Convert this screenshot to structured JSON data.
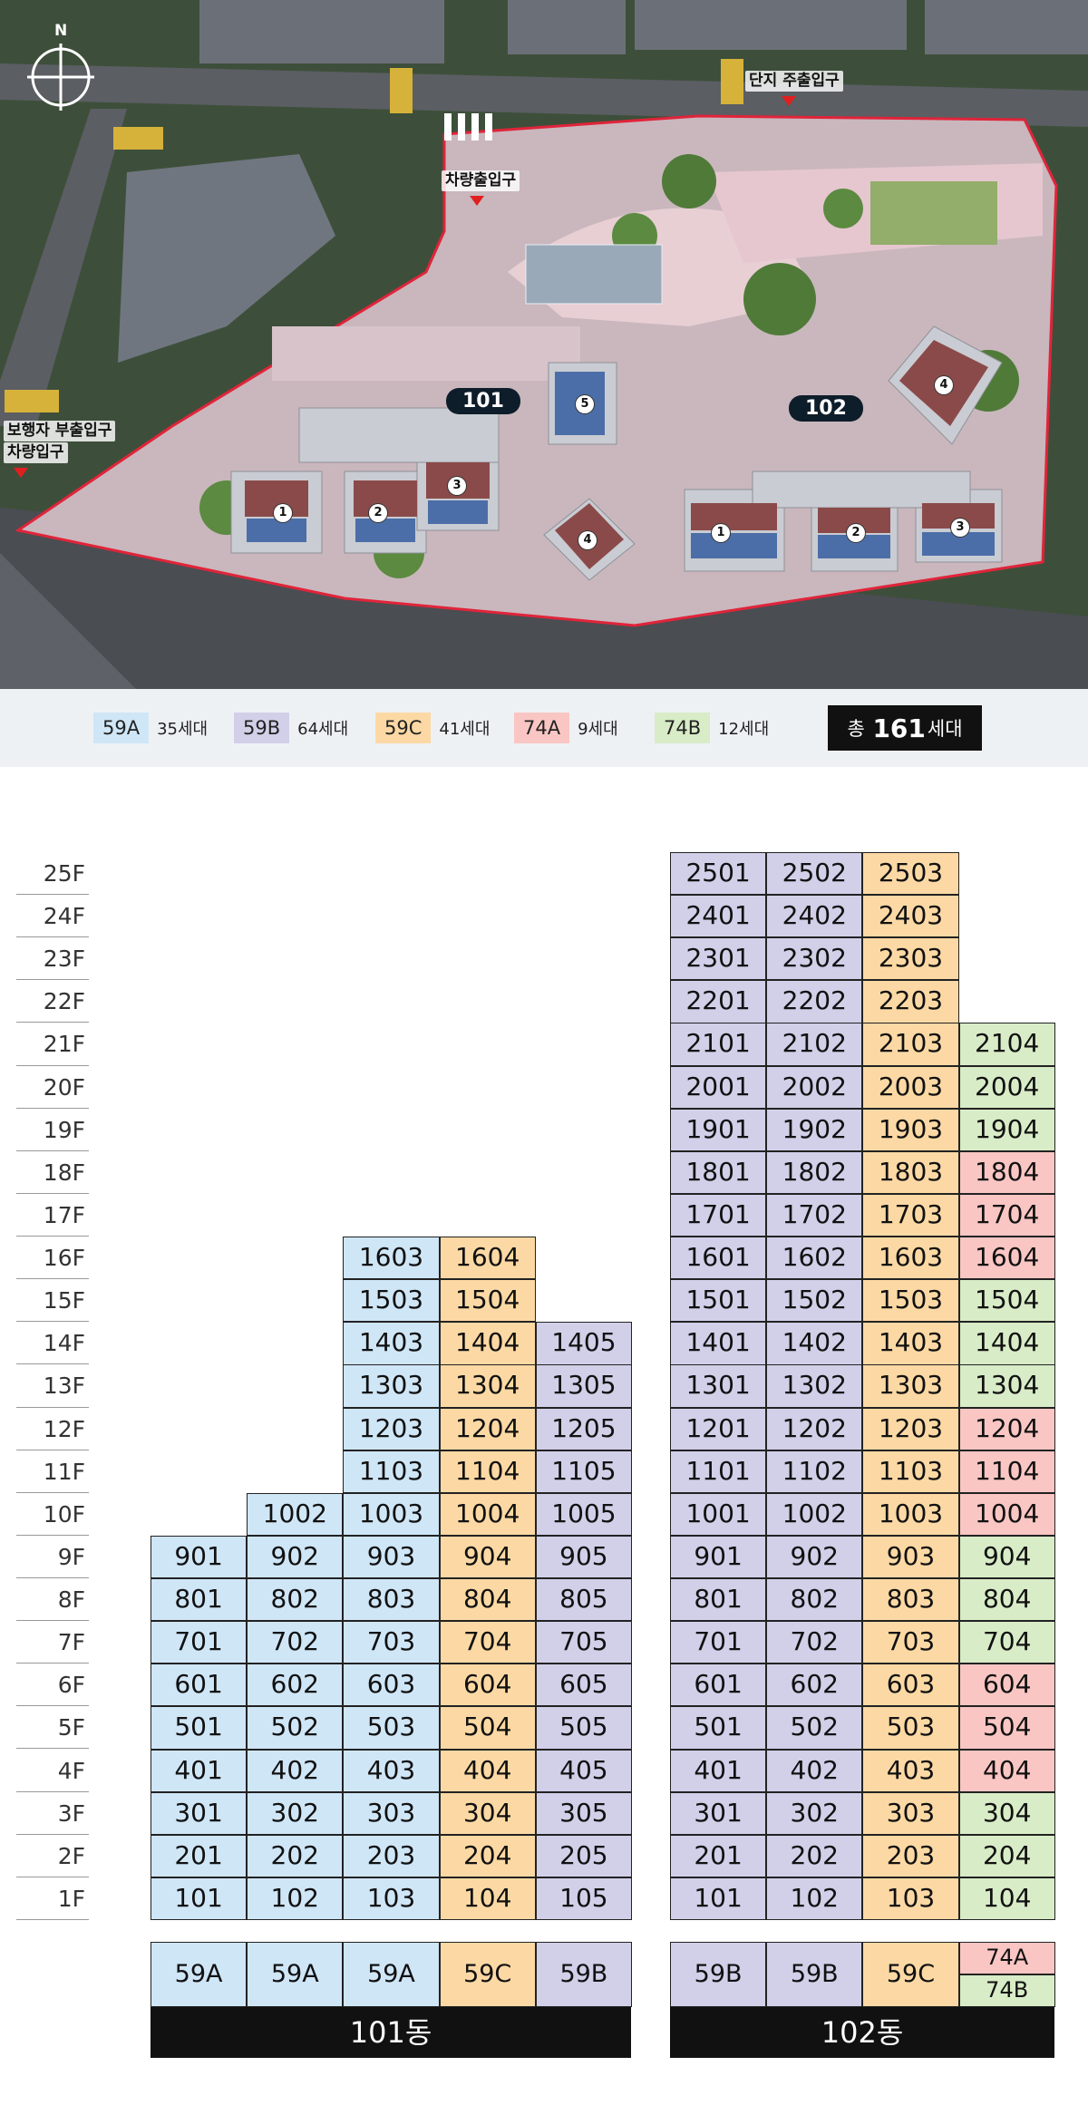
{
  "site_plan": {
    "compass_label": "N",
    "labels": {
      "main_entrance": "단지 주출입구",
      "vehicle_entrance": "차량출입구",
      "pedestrian_sub_line1": "보행자 부출입구",
      "pedestrian_sub_line2": "차량입구"
    },
    "buildings": [
      {
        "label": "101",
        "units": [
          "1",
          "2",
          "3",
          "4",
          "5"
        ]
      },
      {
        "label": "102",
        "units": [
          "1",
          "2",
          "3",
          "4"
        ]
      }
    ]
  },
  "legend": {
    "items": [
      {
        "type": "59A",
        "count": "35세대",
        "color": "#cfe6f7"
      },
      {
        "type": "59B",
        "count": "64세대",
        "color": "#d2cfe9"
      },
      {
        "type": "59C",
        "count": "41세대",
        "color": "#fcd9a4"
      },
      {
        "type": "74A",
        "count": "9세대",
        "color": "#f9c6c3"
      },
      {
        "type": "74B",
        "count": "12세대",
        "color": "#d8ecc7"
      }
    ],
    "total_prefix": "총",
    "total_value": "161",
    "total_suffix": "세대"
  },
  "colors": {
    "59A": "#cfe6f7",
    "59B": "#d2cfe9",
    "59C": "#fcd9a4",
    "74A": "#f9c6c3",
    "74B": "#d8ecc7"
  },
  "floors": [
    "25F",
    "24F",
    "23F",
    "22F",
    "21F",
    "20F",
    "19F",
    "18F",
    "17F",
    "16F",
    "15F",
    "14F",
    "13F",
    "12F",
    "11F",
    "10F",
    "9F",
    "8F",
    "7F",
    "6F",
    "5F",
    "4F",
    "3F",
    "2F",
    "1F"
  ],
  "building_101": {
    "name": "101동",
    "lines": [
      {
        "line": "01",
        "type": "59A",
        "top_floor": 9
      },
      {
        "line": "02",
        "type": "59A",
        "top_floor": 10
      },
      {
        "line": "03",
        "type": "59A",
        "top_floor": 16
      },
      {
        "line": "04",
        "type": "59C",
        "top_floor": 16
      },
      {
        "line": "05",
        "type": "59B",
        "top_floor": 14
      }
    ]
  },
  "building_102": {
    "name": "102동",
    "lines": [
      {
        "line": "01",
        "type": "59B",
        "top_floor": 25
      },
      {
        "line": "02",
        "type": "59B",
        "top_floor": 25
      },
      {
        "line": "03",
        "type": "59C",
        "top_floor": 25
      },
      {
        "line": "04",
        "top_floor": 21,
        "types": {
          "21": "74B",
          "20": "74B",
          "19": "74B",
          "18": "74A",
          "17": "74A",
          "16": "74A",
          "15": "74B",
          "14": "74B",
          "13": "74B",
          "12": "74A",
          "11": "74A",
          "10": "74A",
          "9": "74B",
          "8": "74B",
          "7": "74B",
          "6": "74A",
          "5": "74A",
          "4": "74A",
          "3": "74B",
          "2": "74B",
          "1": "74B"
        },
        "type_label_top": "74A",
        "type_label_bottom": "74B"
      }
    ]
  }
}
